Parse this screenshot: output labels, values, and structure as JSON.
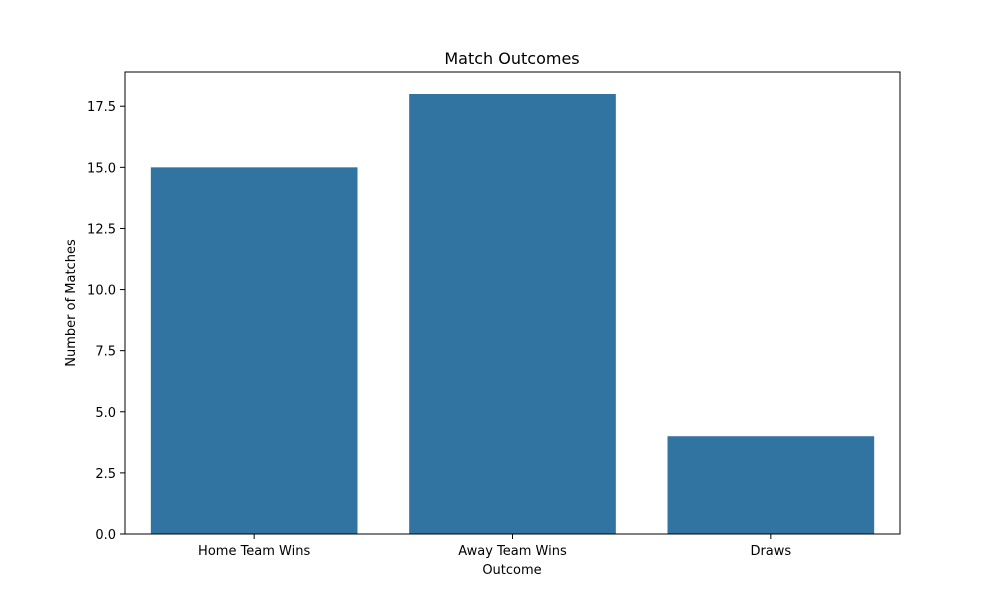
{
  "chart_data": {
    "type": "bar",
    "title": "Match Outcomes",
    "xlabel": "Outcome",
    "ylabel": "Number of Matches",
    "categories": [
      "Home Team Wins",
      "Away Team Wins",
      "Draws"
    ],
    "values": [
      15,
      18,
      4
    ],
    "ylim": [
      0,
      18.9
    ],
    "yticks": [
      0.0,
      2.5,
      5.0,
      7.5,
      10.0,
      12.5,
      15.0,
      17.5
    ],
    "ytick_labels": [
      "0.0",
      "2.5",
      "5.0",
      "7.5",
      "10.0",
      "12.5",
      "15.0",
      "17.5"
    ],
    "bar_color": "#3274a1",
    "grid": false,
    "legend": "none"
  }
}
